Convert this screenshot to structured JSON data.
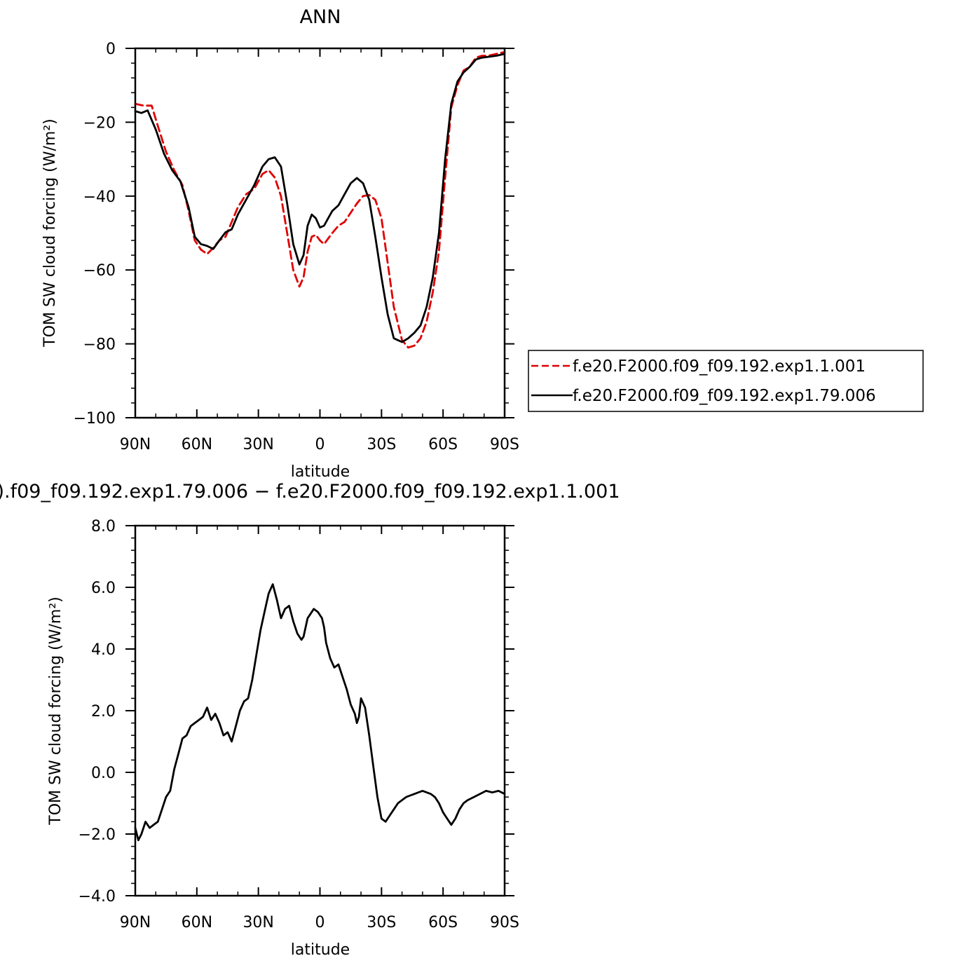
{
  "chart_data": [
    {
      "type": "line",
      "title": "ANN",
      "xlabel": "latitude",
      "ylabel": "TOM SW cloud forcing (W/m²)",
      "xlim": [
        90,
        -90
      ],
      "ylim": [
        -100,
        0
      ],
      "x_ticks": [
        "90N",
        "60N",
        "30N",
        "0",
        "30S",
        "60S",
        "90S"
      ],
      "y_ticks": [
        "0",
        "−20",
        "−40",
        "−60",
        "−80",
        "−100"
      ],
      "legend_position": "right",
      "series": [
        {
          "name": "f.e20.F2000.f09_f09.192.exp1.1.001",
          "color": "#e00000",
          "style": "dashed",
          "x": [
            90,
            86,
            82,
            79,
            75,
            71,
            67,
            64,
            61,
            58,
            55,
            52,
            49,
            46,
            43,
            40,
            36,
            32,
            28,
            25,
            22,
            19,
            16,
            13,
            10,
            8,
            6,
            4,
            2,
            0,
            -2,
            -4,
            -6,
            -9,
            -12,
            -15,
            -18,
            -21,
            -24,
            -27,
            -30,
            -33,
            -36,
            -40,
            -43,
            -46,
            -49,
            -52,
            -55,
            -58,
            -61,
            -64,
            -67,
            -70,
            -73,
            -76,
            -79,
            -82,
            -86,
            -90
          ],
          "y": [
            -15,
            -15.5,
            -15.5,
            -21,
            -28,
            -33,
            -37,
            -44,
            -52,
            -54.5,
            -55.7,
            -54,
            -52,
            -51,
            -47,
            -43,
            -39.5,
            -38,
            -34,
            -33,
            -35,
            -40,
            -50,
            -60,
            -64.5,
            -62,
            -55,
            -51,
            -50.5,
            -52,
            -53,
            -51.5,
            -50,
            -48,
            -47,
            -44.5,
            -42,
            -40,
            -39.7,
            -41,
            -46,
            -58,
            -70,
            -79,
            -81,
            -80.5,
            -78.5,
            -74,
            -66,
            -55,
            -35,
            -16,
            -10,
            -6,
            -5,
            -2.5,
            -2,
            -2,
            -1.5,
            -1
          ]
        },
        {
          "name": "f.e20.F2000.f09_f09.192.exp1.79.006",
          "color": "#000000",
          "style": "solid",
          "x": [
            90,
            87,
            84,
            80,
            76,
            72,
            68,
            64,
            61,
            58,
            55,
            52,
            49,
            46,
            43,
            40,
            36,
            32,
            28,
            25,
            22,
            19,
            16,
            13,
            10,
            8,
            6,
            4,
            2,
            0,
            -2,
            -4,
            -6,
            -9,
            -12,
            -15,
            -18,
            -21,
            -24,
            -27,
            -30,
            -33,
            -36,
            -40,
            -43,
            -46,
            -49,
            -52,
            -55,
            -58,
            -61,
            -64,
            -67,
            -70,
            -73,
            -76,
            -79,
            -82,
            -86,
            -90
          ],
          "y": [
            -17,
            -17.5,
            -16.8,
            -22,
            -28.5,
            -33,
            -36,
            -43,
            -51,
            -53,
            -53.5,
            -54.3,
            -52,
            -49.8,
            -49,
            -45,
            -41,
            -37,
            -32,
            -30,
            -29.5,
            -32,
            -42,
            -53,
            -58.5,
            -56,
            -48,
            -45,
            -46,
            -48.5,
            -48,
            -46,
            -44,
            -42.5,
            -39.5,
            -36.5,
            -35.1,
            -36.5,
            -41,
            -51,
            -62,
            -72,
            -78.5,
            -79.5,
            -78.5,
            -77,
            -75,
            -70,
            -62,
            -50,
            -30,
            -15,
            -9,
            -6.5,
            -5,
            -3,
            -2.5,
            -2.3,
            -2,
            -1.5
          ]
        }
      ]
    },
    {
      "type": "line",
      "title": ").f09_f09.192.exp1.79.006 − f.e20.F2000.f09_f09.192.exp1.1.001",
      "xlabel": "latitude",
      "ylabel": "TOM SW cloud forcing (W/m²)",
      "xlim": [
        90,
        -90
      ],
      "ylim": [
        -4.0,
        8.0
      ],
      "x_ticks": [
        "90N",
        "60N",
        "30N",
        "0",
        "30S",
        "60S",
        "90S"
      ],
      "y_ticks": [
        "8.0",
        "6.0",
        "4.0",
        "2.0",
        "0.0",
        "−2.0",
        "−4.0"
      ],
      "series": [
        {
          "color": "#000000",
          "style": "solid",
          "x": [
            90,
            88.5,
            87,
            85,
            83,
            81,
            79,
            77,
            75,
            73,
            71,
            69,
            67,
            65,
            63,
            61,
            59,
            57,
            55,
            53,
            51,
            49,
            47,
            45,
            43,
            41,
            39,
            37,
            35,
            33,
            31,
            29,
            27,
            25,
            23,
            21,
            19,
            17,
            15,
            13,
            11,
            9,
            8,
            7,
            6,
            5,
            3,
            1,
            0,
            -1,
            -2,
            -3,
            -5,
            -7,
            -9,
            -11,
            -13,
            -15,
            -17,
            -18,
            -19,
            -20,
            -22,
            -24,
            -26,
            -28,
            -30,
            -32,
            -34,
            -36,
            -38,
            -40,
            -42,
            -44,
            -46,
            -48,
            -50,
            -52,
            -54,
            -56,
            -58,
            -60,
            -62,
            -63,
            -64,
            -66,
            -68,
            -70,
            -72,
            -75,
            -78,
            -81,
            -84,
            -87,
            -90
          ],
          "y": [
            -1.8,
            -2.2,
            -2.0,
            -1.6,
            -1.8,
            -1.7,
            -1.6,
            -1.2,
            -0.8,
            -0.6,
            0.1,
            0.6,
            1.1,
            1.2,
            1.5,
            1.6,
            1.7,
            1.8,
            2.1,
            1.7,
            1.9,
            1.6,
            1.2,
            1.3,
            1.0,
            1.5,
            2.0,
            2.3,
            2.4,
            3.0,
            3.8,
            4.6,
            5.2,
            5.8,
            6.1,
            5.6,
            5.0,
            5.3,
            5.4,
            4.9,
            4.5,
            4.3,
            4.4,
            4.7,
            5.0,
            5.1,
            5.3,
            5.2,
            5.1,
            5.0,
            4.7,
            4.2,
            3.7,
            3.4,
            3.5,
            3.1,
            2.7,
            2.2,
            1.9,
            1.6,
            1.8,
            2.4,
            2.1,
            1.2,
            0.2,
            -0.8,
            -1.5,
            -1.6,
            -1.4,
            -1.2,
            -1.0,
            -0.9,
            -0.8,
            -0.75,
            -0.7,
            -0.65,
            -0.6,
            -0.65,
            -0.7,
            -0.8,
            -1.0,
            -1.3,
            -1.5,
            -1.6,
            -1.7,
            -1.5,
            -1.2,
            -1.0,
            -0.9,
            -0.8,
            -0.7,
            -0.6,
            -0.65,
            -0.6,
            -0.7
          ]
        }
      ]
    }
  ]
}
